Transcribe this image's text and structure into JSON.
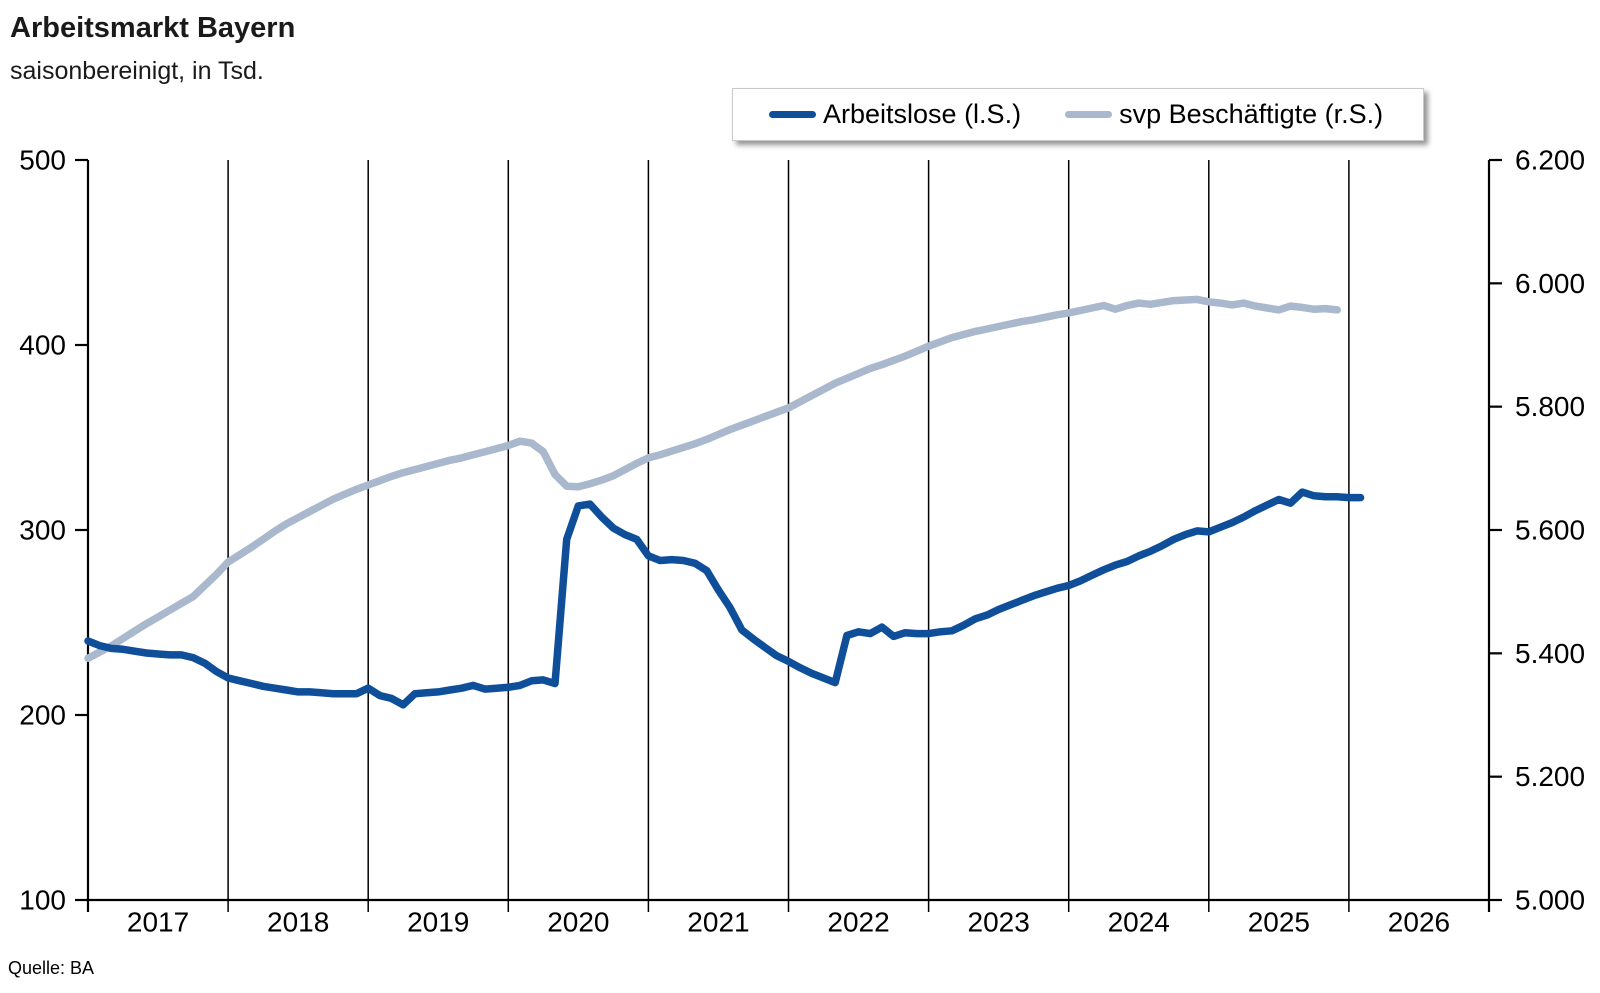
{
  "header": {
    "title": "Arbeitsmarkt Bayern",
    "subtitle": "saisonbereinigt, in Tsd."
  },
  "footer": {
    "source": "Quelle: BA"
  },
  "legend": {
    "items": [
      {
        "label": "Arbeitslose (l.S.)"
      },
      {
        "label": "svp Beschäftigte (r.S.)"
      }
    ]
  },
  "colors": {
    "arbeitslose": "#0f4f9a",
    "beschaeftigte": "#a9b8cd",
    "axis": "#000000"
  },
  "chart_data": {
    "type": "line",
    "title": "Arbeitsmarkt Bayern",
    "subtitle": "saisonbereinigt, in Tsd.",
    "grid": "vertical-yearly",
    "legend_position": "top-center-inside-box",
    "x_axis": {
      "tick_labels": [
        "2017",
        "2018",
        "2019",
        "2020",
        "2021",
        "2022",
        "2023",
        "2024",
        "2025",
        "2026"
      ],
      "labels_between_ticks": true
    },
    "y_axis_left": {
      "tick_labels": [
        "500",
        "400",
        "300",
        "200",
        "100"
      ],
      "ticks": [
        500,
        400,
        300,
        200,
        100
      ],
      "range": [
        100,
        500
      ]
    },
    "y_axis_right": {
      "tick_labels": [
        "6.200",
        "6.000",
        "5.800",
        "5.600",
        "5.400",
        "5.200",
        "5.000"
      ],
      "ticks": [
        6200,
        6000,
        5800,
        5600,
        5400,
        5200,
        5000
      ],
      "range": [
        5000,
        6200
      ]
    },
    "points_per_year": 12,
    "series": [
      {
        "name": "Arbeitslose (l.S.)",
        "axis": "left",
        "color": "#0f4f9a",
        "values": [
          240,
          237.5,
          236,
          235.5,
          234.5,
          233.5,
          233,
          232.5,
          232.5,
          231,
          228,
          223.5,
          220,
          218.5,
          217,
          215.5,
          214.5,
          213.5,
          212.5,
          212.5,
          212,
          211.5,
          211.5,
          211.5,
          214.5,
          210.5,
          209,
          205.5,
          211.5,
          212,
          212.5,
          213.5,
          214.5,
          216,
          214,
          214.5,
          215,
          216,
          218.5,
          219,
          217,
          295,
          313,
          314,
          307,
          301,
          297.5,
          295,
          286,
          283.5,
          284,
          283.5,
          282,
          278,
          267.5,
          258,
          246,
          241,
          236.5,
          232,
          229,
          225.5,
          222.5,
          220,
          217.5,
          243,
          245,
          244,
          247.5,
          242.5,
          244.5,
          244,
          244,
          245,
          245.5,
          248.5,
          252,
          254,
          257,
          259.5,
          262,
          264.5,
          266.5,
          268.5,
          270,
          272.5,
          275.5,
          278.5,
          281,
          283,
          286,
          288.5,
          291.5,
          295,
          297.5,
          299.5,
          299,
          301.5,
          304,
          307,
          310.5,
          313.5,
          316.5,
          314.5,
          320.5,
          318.5,
          318,
          318,
          317.5,
          317.5
        ]
      },
      {
        "name": "svp Beschäftigte (r.S.)",
        "axis": "right",
        "color": "#a9b8cd",
        "values": [
          5392,
          5402,
          5412,
          5424,
          5436,
          5448,
          5459,
          5470,
          5481,
          5492,
          5510,
          5528,
          5548,
          5560,
          5572,
          5585,
          5598,
          5610,
          5620,
          5630,
          5640,
          5650,
          5658,
          5666,
          5673,
          5680,
          5687,
          5693,
          5698,
          5703,
          5708,
          5713,
          5717,
          5722,
          5727,
          5732,
          5737,
          5744,
          5741,
          5727,
          5690,
          5671,
          5670,
          5675,
          5681,
          5688,
          5698,
          5708,
          5717,
          5722,
          5728,
          5734,
          5740,
          5747,
          5755,
          5763,
          5770,
          5777,
          5784,
          5791,
          5798,
          5808,
          5818,
          5828,
          5838,
          5846,
          5854,
          5862,
          5868,
          5875,
          5882,
          5890,
          5898,
          5905,
          5912,
          5917,
          5922,
          5926,
          5930,
          5934,
          5938,
          5941,
          5945,
          5949,
          5952,
          5956,
          5960,
          5964,
          5958,
          5964,
          5968,
          5966,
          5969,
          5972,
          5973,
          5974,
          5970,
          5968,
          5965,
          5968,
          5963,
          5960,
          5957,
          5963,
          5961,
          5958,
          5959,
          5957
        ]
      }
    ]
  }
}
